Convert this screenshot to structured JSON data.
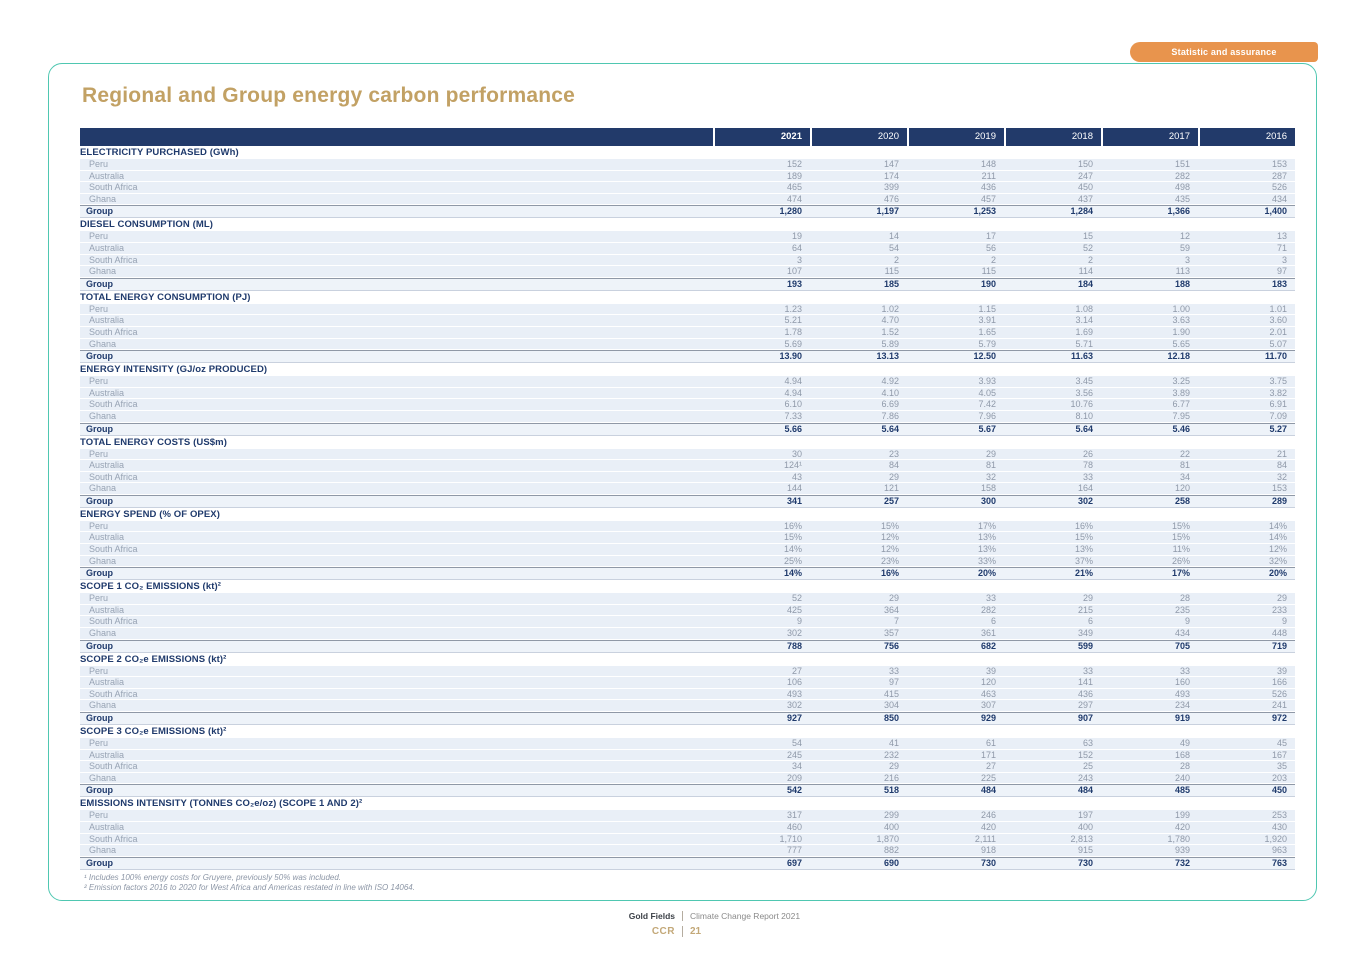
{
  "page_title": "Regional and Group energy carbon performance",
  "badge": {
    "label": "Statistic and assurance"
  },
  "colors": {
    "header_navy": "#223a6a",
    "section_navy": "#1f3a6c",
    "title_gold": "#c2a164",
    "badge_orange": "#e8944d",
    "card_border_teal": "#4fc7b1",
    "row_blue": "#e9eff7",
    "footer_tan": "#c3a878"
  },
  "table": {
    "year_columns": [
      "2021",
      "2020",
      "2019",
      "2018",
      "2017",
      "2016"
    ],
    "sections": [
      {
        "title": "ELECTRICITY PURCHASED (GWh)",
        "rows": [
          {
            "label": "Peru",
            "values": [
              "152",
              "147",
              "148",
              "150",
              "151",
              "153"
            ]
          },
          {
            "label": "Australia",
            "values": [
              "189",
              "174",
              "211",
              "247",
              "282",
              "287"
            ]
          },
          {
            "label": "South Africa",
            "values": [
              "465",
              "399",
              "436",
              "450",
              "498",
              "526"
            ]
          },
          {
            "label": "Ghana",
            "values": [
              "474",
              "476",
              "457",
              "437",
              "435",
              "434"
            ]
          },
          {
            "label": "Group",
            "values": [
              "1,280",
              "1,197",
              "1,253",
              "1,284",
              "1,366",
              "1,400"
            ]
          }
        ]
      },
      {
        "title": "DIESEL CONSUMPTION (ML)",
        "rows": [
          {
            "label": "Peru",
            "values": [
              "19",
              "14",
              "17",
              "15",
              "12",
              "13"
            ]
          },
          {
            "label": "Australia",
            "values": [
              "64",
              "54",
              "56",
              "52",
              "59",
              "71"
            ]
          },
          {
            "label": "South Africa",
            "values": [
              "3",
              "2",
              "2",
              "2",
              "3",
              "3"
            ]
          },
          {
            "label": "Ghana",
            "values": [
              "107",
              "115",
              "115",
              "114",
              "113",
              "97"
            ]
          },
          {
            "label": "Group",
            "values": [
              "193",
              "185",
              "190",
              "184",
              "188",
              "183"
            ]
          }
        ]
      },
      {
        "title": "TOTAL ENERGY CONSUMPTION (PJ)",
        "rows": [
          {
            "label": "Peru",
            "values": [
              "1.23",
              "1.02",
              "1.15",
              "1.08",
              "1.00",
              "1.01"
            ]
          },
          {
            "label": "Australia",
            "values": [
              "5.21",
              "4.70",
              "3.91",
              "3.14",
              "3.63",
              "3.60"
            ]
          },
          {
            "label": "South Africa",
            "values": [
              "1.78",
              "1.52",
              "1.65",
              "1.69",
              "1.90",
              "2.01"
            ]
          },
          {
            "label": "Ghana",
            "values": [
              "5.69",
              "5.89",
              "5.79",
              "5.71",
              "5.65",
              "5.07"
            ]
          },
          {
            "label": "Group",
            "values": [
              "13.90",
              "13.13",
              "12.50",
              "11.63",
              "12.18",
              "11.70"
            ]
          }
        ]
      },
      {
        "title": "ENERGY INTENSITY (GJ/oz PRODUCED)",
        "rows": [
          {
            "label": "Peru",
            "values": [
              "4.94",
              "4.92",
              "3.93",
              "3.45",
              "3.25",
              "3.75"
            ]
          },
          {
            "label": "Australia",
            "values": [
              "4.94",
              "4.10",
              "4.05",
              "3.56",
              "3.89",
              "3.82"
            ]
          },
          {
            "label": "South Africa",
            "values": [
              "6.10",
              "6.69",
              "7.42",
              "10.76",
              "6.77",
              "6.91"
            ]
          },
          {
            "label": "Ghana",
            "values": [
              "7.33",
              "7.86",
              "7.96",
              "8.10",
              "7.95",
              "7.09"
            ]
          },
          {
            "label": "Group",
            "values": [
              "5.66",
              "5.64",
              "5.67",
              "5.64",
              "5.46",
              "5.27"
            ]
          }
        ]
      },
      {
        "title": "TOTAL ENERGY COSTS (US$m)",
        "rows": [
          {
            "label": "Peru",
            "values": [
              "30",
              "23",
              "29",
              "26",
              "22",
              "21"
            ]
          },
          {
            "label": "Australia",
            "values": [
              "124¹",
              "84",
              "81",
              "78",
              "81",
              "84"
            ]
          },
          {
            "label": "South Africa",
            "values": [
              "43",
              "29",
              "32",
              "33",
              "34",
              "32"
            ]
          },
          {
            "label": "Ghana",
            "values": [
              "144",
              "121",
              "158",
              "164",
              "120",
              "153"
            ]
          },
          {
            "label": "Group",
            "values": [
              "341",
              "257",
              "300",
              "302",
              "258",
              "289"
            ]
          }
        ]
      },
      {
        "title": "ENERGY SPEND (% OF OPEX)",
        "rows": [
          {
            "label": "Peru",
            "values": [
              "16%",
              "15%",
              "17%",
              "16%",
              "15%",
              "14%"
            ]
          },
          {
            "label": "Australia",
            "values": [
              "15%",
              "12%",
              "13%",
              "15%",
              "15%",
              "14%"
            ]
          },
          {
            "label": "South Africa",
            "values": [
              "14%",
              "12%",
              "13%",
              "13%",
              "11%",
              "12%"
            ]
          },
          {
            "label": "Ghana",
            "values": [
              "25%",
              "23%",
              "33%",
              "37%",
              "26%",
              "32%"
            ]
          },
          {
            "label": "Group",
            "values": [
              "14%",
              "16%",
              "20%",
              "21%",
              "17%",
              "20%"
            ]
          }
        ]
      },
      {
        "title": "SCOPE 1 CO₂ EMISSIONS (kt)²",
        "rows": [
          {
            "label": "Peru",
            "values": [
              "52",
              "29",
              "33",
              "29",
              "28",
              "29"
            ]
          },
          {
            "label": "Australia",
            "values": [
              "425",
              "364",
              "282",
              "215",
              "235",
              "233"
            ]
          },
          {
            "label": "South Africa",
            "values": [
              "9",
              "7",
              "6",
              "6",
              "9",
              "9"
            ]
          },
          {
            "label": "Ghana",
            "values": [
              "302",
              "357",
              "361",
              "349",
              "434",
              "448"
            ]
          },
          {
            "label": "Group",
            "values": [
              "788",
              "756",
              "682",
              "599",
              "705",
              "719"
            ]
          }
        ]
      },
      {
        "title": "SCOPE 2 CO₂e EMISSIONS (kt)²",
        "rows": [
          {
            "label": "Peru",
            "values": [
              "27",
              "33",
              "39",
              "33",
              "33",
              "39"
            ]
          },
          {
            "label": "Australia",
            "values": [
              "106",
              "97",
              "120",
              "141",
              "160",
              "166"
            ]
          },
          {
            "label": "South Africa",
            "values": [
              "493",
              "415",
              "463",
              "436",
              "493",
              "526"
            ]
          },
          {
            "label": "Ghana",
            "values": [
              "302",
              "304",
              "307",
              "297",
              "234",
              "241"
            ]
          },
          {
            "label": "Group",
            "values": [
              "927",
              "850",
              "929",
              "907",
              "919",
              "972"
            ]
          }
        ]
      },
      {
        "title": "SCOPE 3 CO₂e EMISSIONS (kt)²",
        "rows": [
          {
            "label": "Peru",
            "values": [
              "54",
              "41",
              "61",
              "63",
              "49",
              "45"
            ]
          },
          {
            "label": "Australia",
            "values": [
              "245",
              "232",
              "171",
              "152",
              "168",
              "167"
            ]
          },
          {
            "label": "South Africa",
            "values": [
              "34",
              "29",
              "27",
              "25",
              "28",
              "35"
            ]
          },
          {
            "label": "Ghana",
            "values": [
              "209",
              "216",
              "225",
              "243",
              "240",
              "203"
            ]
          },
          {
            "label": "Group",
            "values": [
              "542",
              "518",
              "484",
              "484",
              "485",
              "450"
            ]
          }
        ]
      },
      {
        "title": "EMISSIONS INTENSITY (TONNES CO₂e/oz) (SCOPE 1 AND 2)²",
        "rows": [
          {
            "label": "Peru",
            "values": [
              "317",
              "299",
              "246",
              "197",
              "199",
              "253"
            ]
          },
          {
            "label": "Australia",
            "values": [
              "460",
              "400",
              "420",
              "400",
              "420",
              "430"
            ]
          },
          {
            "label": "South Africa",
            "values": [
              "1,710",
              "1,870",
              "2,111",
              "2,813",
              "1,780",
              "1,920"
            ]
          },
          {
            "label": "Ghana",
            "values": [
              "777",
              "882",
              "918",
              "915",
              "939",
              "963"
            ]
          },
          {
            "label": "Group",
            "values": [
              "697",
              "690",
              "730",
              "730",
              "732",
              "763"
            ]
          }
        ]
      }
    ]
  },
  "footnotes": [
    "¹ Includes 100% energy costs for Gruyere, previously 50% was included.",
    "² Emission factors 2016 to 2020 for West Africa and Americas restated in line with ISO 14064."
  ],
  "footer": {
    "brand": "Gold Fields",
    "report": "Climate Change Report 2021",
    "code": "CCR",
    "page": "21"
  }
}
